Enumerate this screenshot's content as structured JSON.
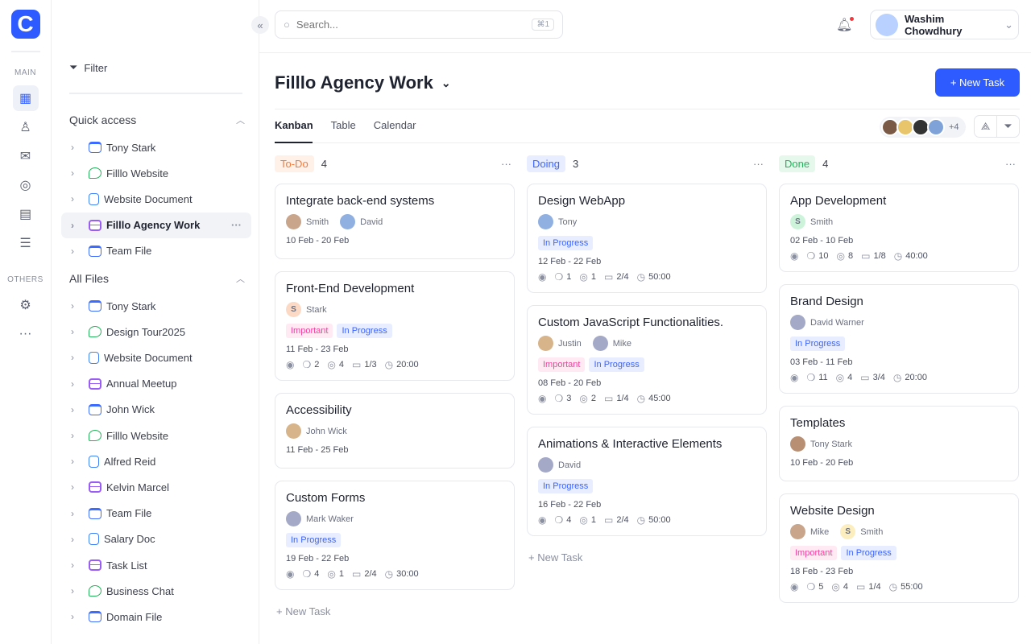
{
  "rail": {
    "main_label": "MAIN",
    "others_label": "OTHERS",
    "items": [
      "dashboard-icon",
      "user-icon",
      "inbox-icon",
      "chat-icon",
      "clipboard-icon",
      "database-icon"
    ],
    "others": [
      "settings-icon",
      "more-icon"
    ]
  },
  "panel": {
    "filter": "Filter",
    "quick_access": "Quick access",
    "all_files": "All Files",
    "quick": [
      {
        "label": "Tony Stark",
        "icon": "folder"
      },
      {
        "label": "Filllo Website",
        "icon": "chat"
      },
      {
        "label": "Website Document",
        "icon": "doc"
      },
      {
        "label": "Filllo Agency Work",
        "icon": "stack",
        "selected": true
      },
      {
        "label": "Team File",
        "icon": "folder"
      }
    ],
    "files": [
      {
        "label": "Tony Stark",
        "icon": "folder"
      },
      {
        "label": "Design Tour2025",
        "icon": "chat"
      },
      {
        "label": "Website Document",
        "icon": "doc"
      },
      {
        "label": "Annual Meetup",
        "icon": "stack"
      },
      {
        "label": "John Wick",
        "icon": "folder"
      },
      {
        "label": "Filllo Website",
        "icon": "chat"
      },
      {
        "label": "Alfred Reid",
        "icon": "doc"
      },
      {
        "label": "Kelvin Marcel",
        "icon": "stack"
      },
      {
        "label": "Team File",
        "icon": "folder"
      },
      {
        "label": "Salary Doc",
        "icon": "doc"
      },
      {
        "label": "Task List",
        "icon": "stack"
      },
      {
        "label": "Business Chat",
        "icon": "chat"
      },
      {
        "label": "Domain File",
        "icon": "folder"
      }
    ]
  },
  "header": {
    "search_placeholder": "Search...",
    "shortcut": "⌘1",
    "user_name": "Washim Chowdhury"
  },
  "page": {
    "title": "Filllo Agency Work",
    "new_task": "+ New Task",
    "tabs": [
      "Kanban",
      "Table",
      "Calendar"
    ],
    "active_tab": "Kanban",
    "members_extra": "+4"
  },
  "accent": "#2d5bff",
  "columns": [
    {
      "name": "To-Do",
      "count": "4",
      "color": "#f47a3c",
      "bg": "#fff0e8",
      "add_label": "+ New Task",
      "cards": [
        {
          "title": "Integrate back-end systems",
          "assignees": [
            "Smith",
            "David"
          ],
          "tags": [],
          "dates": "10 Feb - 20 Feb"
        },
        {
          "title": "Front-End Development",
          "assignees": [
            {
              "name": "Stark",
              "initial": "S",
              "bg": "#fcd9c4"
            }
          ],
          "tags": [
            "Important",
            "In Progress"
          ],
          "dates": "11 Feb - 23 Feb",
          "stats": [
            "2",
            "4",
            "1/3",
            "20:00"
          ]
        },
        {
          "title": "Accessibility",
          "assignees": [
            "John Wick"
          ],
          "tags": [],
          "dates": "11 Feb - 25 Feb"
        },
        {
          "title": "Custom Forms",
          "assignees": [
            "Mark Waker"
          ],
          "tags": [
            "In Progress"
          ],
          "dates": "19 Feb - 22 Feb",
          "stats": [
            "4",
            "1",
            "2/4",
            "30:00"
          ]
        }
      ]
    },
    {
      "name": "Doing",
      "count": "3",
      "color": "#3b63ff",
      "bg": "#e8eeff",
      "add_label": "+ New Task",
      "cards": [
        {
          "title": "Design WebApp",
          "assignees": [
            "Tony"
          ],
          "tags": [
            "In Progress"
          ],
          "dates": "12 Feb - 22 Feb",
          "stats": [
            "1",
            "1",
            "2/4",
            "50:00"
          ]
        },
        {
          "title": "Custom JavaScript Functionalities.",
          "assignees": [
            "Justin",
            "Mike"
          ],
          "tags": [
            "Important",
            "In Progress"
          ],
          "dates": "08 Feb - 20 Feb",
          "stats": [
            "3",
            "2",
            "1/4",
            "45:00"
          ]
        },
        {
          "title": "Animations & Interactive Elements",
          "assignees": [
            "David"
          ],
          "tags": [
            "In Progress"
          ],
          "dates": "16 Feb - 22 Feb",
          "stats": [
            "4",
            "1",
            "2/4",
            "50:00"
          ]
        }
      ]
    },
    {
      "name": "Done",
      "count": "4",
      "color": "#22b35a",
      "bg": "#e6f8ec",
      "cards": [
        {
          "title": "App Development",
          "assignees": [
            {
              "name": "Smith",
              "initial": "S",
              "bg": "#cdf3da"
            }
          ],
          "tags": [],
          "dates": "02 Feb - 10 Feb",
          "stats": [
            "10",
            "8",
            "1/8",
            "40:00"
          ]
        },
        {
          "title": "Brand Design",
          "assignees": [
            "David Warner"
          ],
          "tags": [
            "In Progress"
          ],
          "dates": "03 Feb - 11 Feb",
          "stats": [
            "11",
            "4",
            "3/4",
            "20:00"
          ]
        },
        {
          "title": "Templates",
          "assignees": [
            "Tony Stark"
          ],
          "tags": [],
          "dates": "10 Feb - 20 Feb"
        },
        {
          "title": "Website Design",
          "assignees": [
            "Mike",
            {
              "name": "Smith",
              "initial": "S",
              "bg": "#fdeec0"
            }
          ],
          "tags": [
            "Important",
            "In Progress"
          ],
          "dates": "18 Feb - 23 Feb",
          "stats": [
            "5",
            "4",
            "1/4",
            "55:00"
          ]
        }
      ]
    }
  ]
}
